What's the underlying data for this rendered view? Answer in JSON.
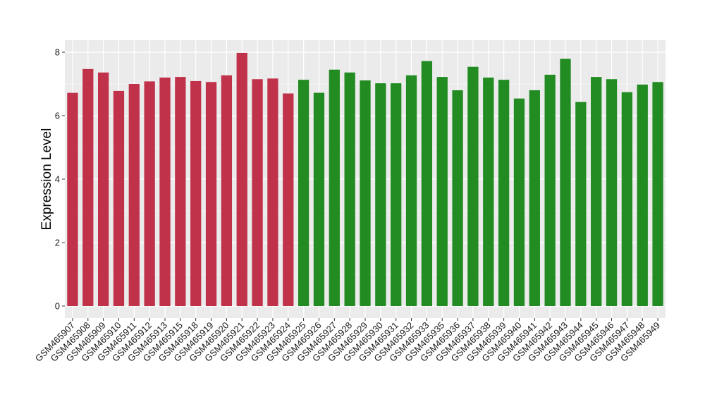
{
  "chart_data": {
    "type": "bar",
    "title": "",
    "xlabel": "",
    "ylabel": "Expression Level",
    "ylim": [
      0,
      8.4
    ],
    "yticks": [
      0,
      2,
      4,
      6,
      8
    ],
    "grid": true,
    "legend": "none",
    "background": "#ebebeb",
    "gridline_color": "#ffffff",
    "group_colors": {
      "group1": "#c0324a",
      "group2": "#228b22"
    },
    "categories": [
      "GSM465907",
      "GSM465908",
      "GSM465909",
      "GSM465910",
      "GSM465911",
      "GSM465912",
      "GSM465913",
      "GSM465915",
      "GSM465918",
      "GSM465919",
      "GSM465920",
      "GSM465921",
      "GSM465922",
      "GSM465923",
      "GSM465924",
      "GSM465925",
      "GSM465926",
      "GSM465927",
      "GSM465928",
      "GSM465929",
      "GSM465930",
      "GSM465931",
      "GSM465932",
      "GSM465933",
      "GSM465935",
      "GSM465936",
      "GSM465937",
      "GSM465938",
      "GSM465939",
      "GSM465940",
      "GSM465941",
      "GSM465942",
      "GSM465943",
      "GSM465944",
      "GSM465945",
      "GSM465946",
      "GSM465947",
      "GSM465948",
      "GSM465949"
    ],
    "values": [
      6.72,
      7.47,
      7.36,
      6.78,
      7.0,
      7.08,
      7.2,
      7.22,
      7.09,
      7.06,
      7.27,
      7.98,
      7.15,
      7.17,
      6.7,
      7.13,
      6.72,
      7.45,
      7.36,
      7.11,
      7.02,
      7.02,
      7.27,
      7.72,
      7.22,
      6.8,
      7.54,
      7.2,
      7.13,
      6.54,
      6.8,
      7.29,
      7.79,
      6.43,
      7.22,
      7.15,
      6.74,
      6.98,
      7.06
    ],
    "groups": [
      "group1",
      "group1",
      "group1",
      "group1",
      "group1",
      "group1",
      "group1",
      "group1",
      "group1",
      "group1",
      "group1",
      "group1",
      "group1",
      "group1",
      "group1",
      "group2",
      "group2",
      "group2",
      "group2",
      "group2",
      "group2",
      "group2",
      "group2",
      "group2",
      "group2",
      "group2",
      "group2",
      "group2",
      "group2",
      "group2",
      "group2",
      "group2",
      "group2",
      "group2",
      "group2",
      "group2",
      "group2",
      "group2",
      "group2"
    ]
  }
}
